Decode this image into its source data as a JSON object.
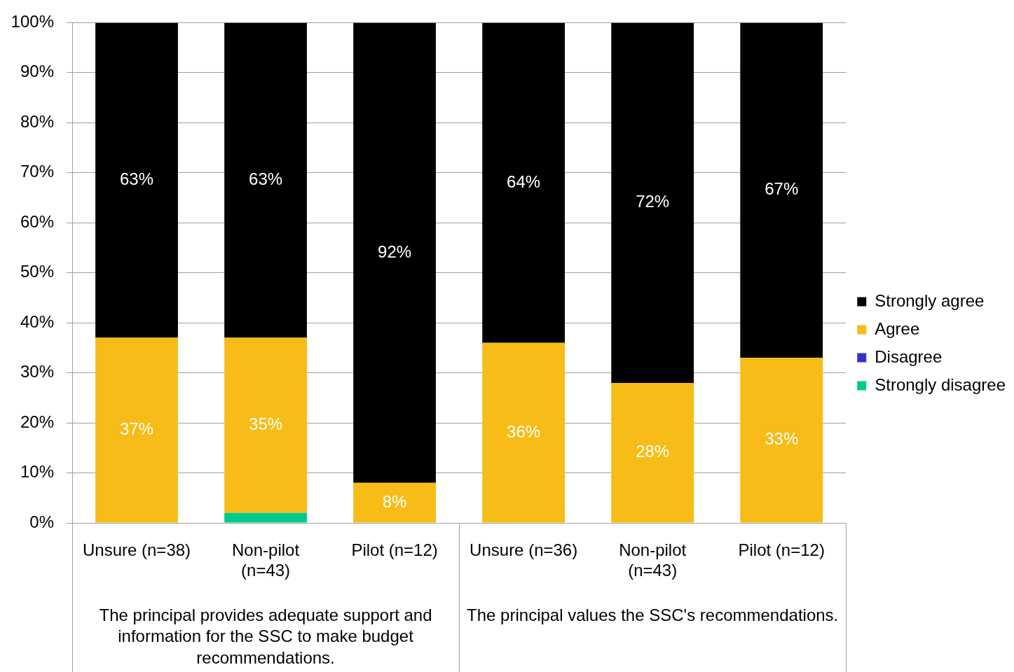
{
  "chart_data": {
    "type": "bar",
    "stacked": true,
    "categories": [
      "Unsure (n=38)",
      "Non-pilot (n=43)",
      "Pilot (n=12)",
      "Unsure (n=36)",
      "Non-pilot (n=43)",
      "Pilot (n=12)"
    ],
    "series": [
      {
        "name": "Strongly disagree",
        "color": "#00c98e",
        "values": [
          0,
          2,
          0,
          0,
          0,
          0
        ]
      },
      {
        "name": "Disagree",
        "color": "#3333cc",
        "values": [
          0,
          0,
          0,
          0,
          0,
          0
        ]
      },
      {
        "name": "Agree",
        "color": "#f7bc17",
        "values": [
          37,
          35,
          8,
          36,
          28,
          33
        ],
        "value_labels": [
          "37%",
          "35%",
          "8%",
          "36%",
          "28%",
          "33%"
        ]
      },
      {
        "name": "Strongly agree",
        "color": "#000000",
        "values": [
          63,
          63,
          92,
          64,
          72,
          67
        ],
        "value_labels": [
          "63%",
          "63%",
          "92%",
          "64%",
          "72%",
          "67%"
        ]
      }
    ],
    "ylim": [
      0,
      100
    ],
    "yticks": [
      {
        "value": 0,
        "label": "0%"
      },
      {
        "value": 10,
        "label": "10%"
      },
      {
        "value": 20,
        "label": "20%"
      },
      {
        "value": 30,
        "label": "30%"
      },
      {
        "value": 40,
        "label": "40%"
      },
      {
        "value": 50,
        "label": "50%"
      },
      {
        "value": 60,
        "label": "60%"
      },
      {
        "value": 70,
        "label": "70%"
      },
      {
        "value": 80,
        "label": "80%"
      },
      {
        "value": 90,
        "label": "90%"
      },
      {
        "value": 100,
        "label": "100%"
      }
    ],
    "grid": "y",
    "legend": "right",
    "annotations": [
      "The principal provides adequate support and information for the SSC to make budget recommendations.",
      "The principal values the SSC's recommendations."
    ]
  }
}
